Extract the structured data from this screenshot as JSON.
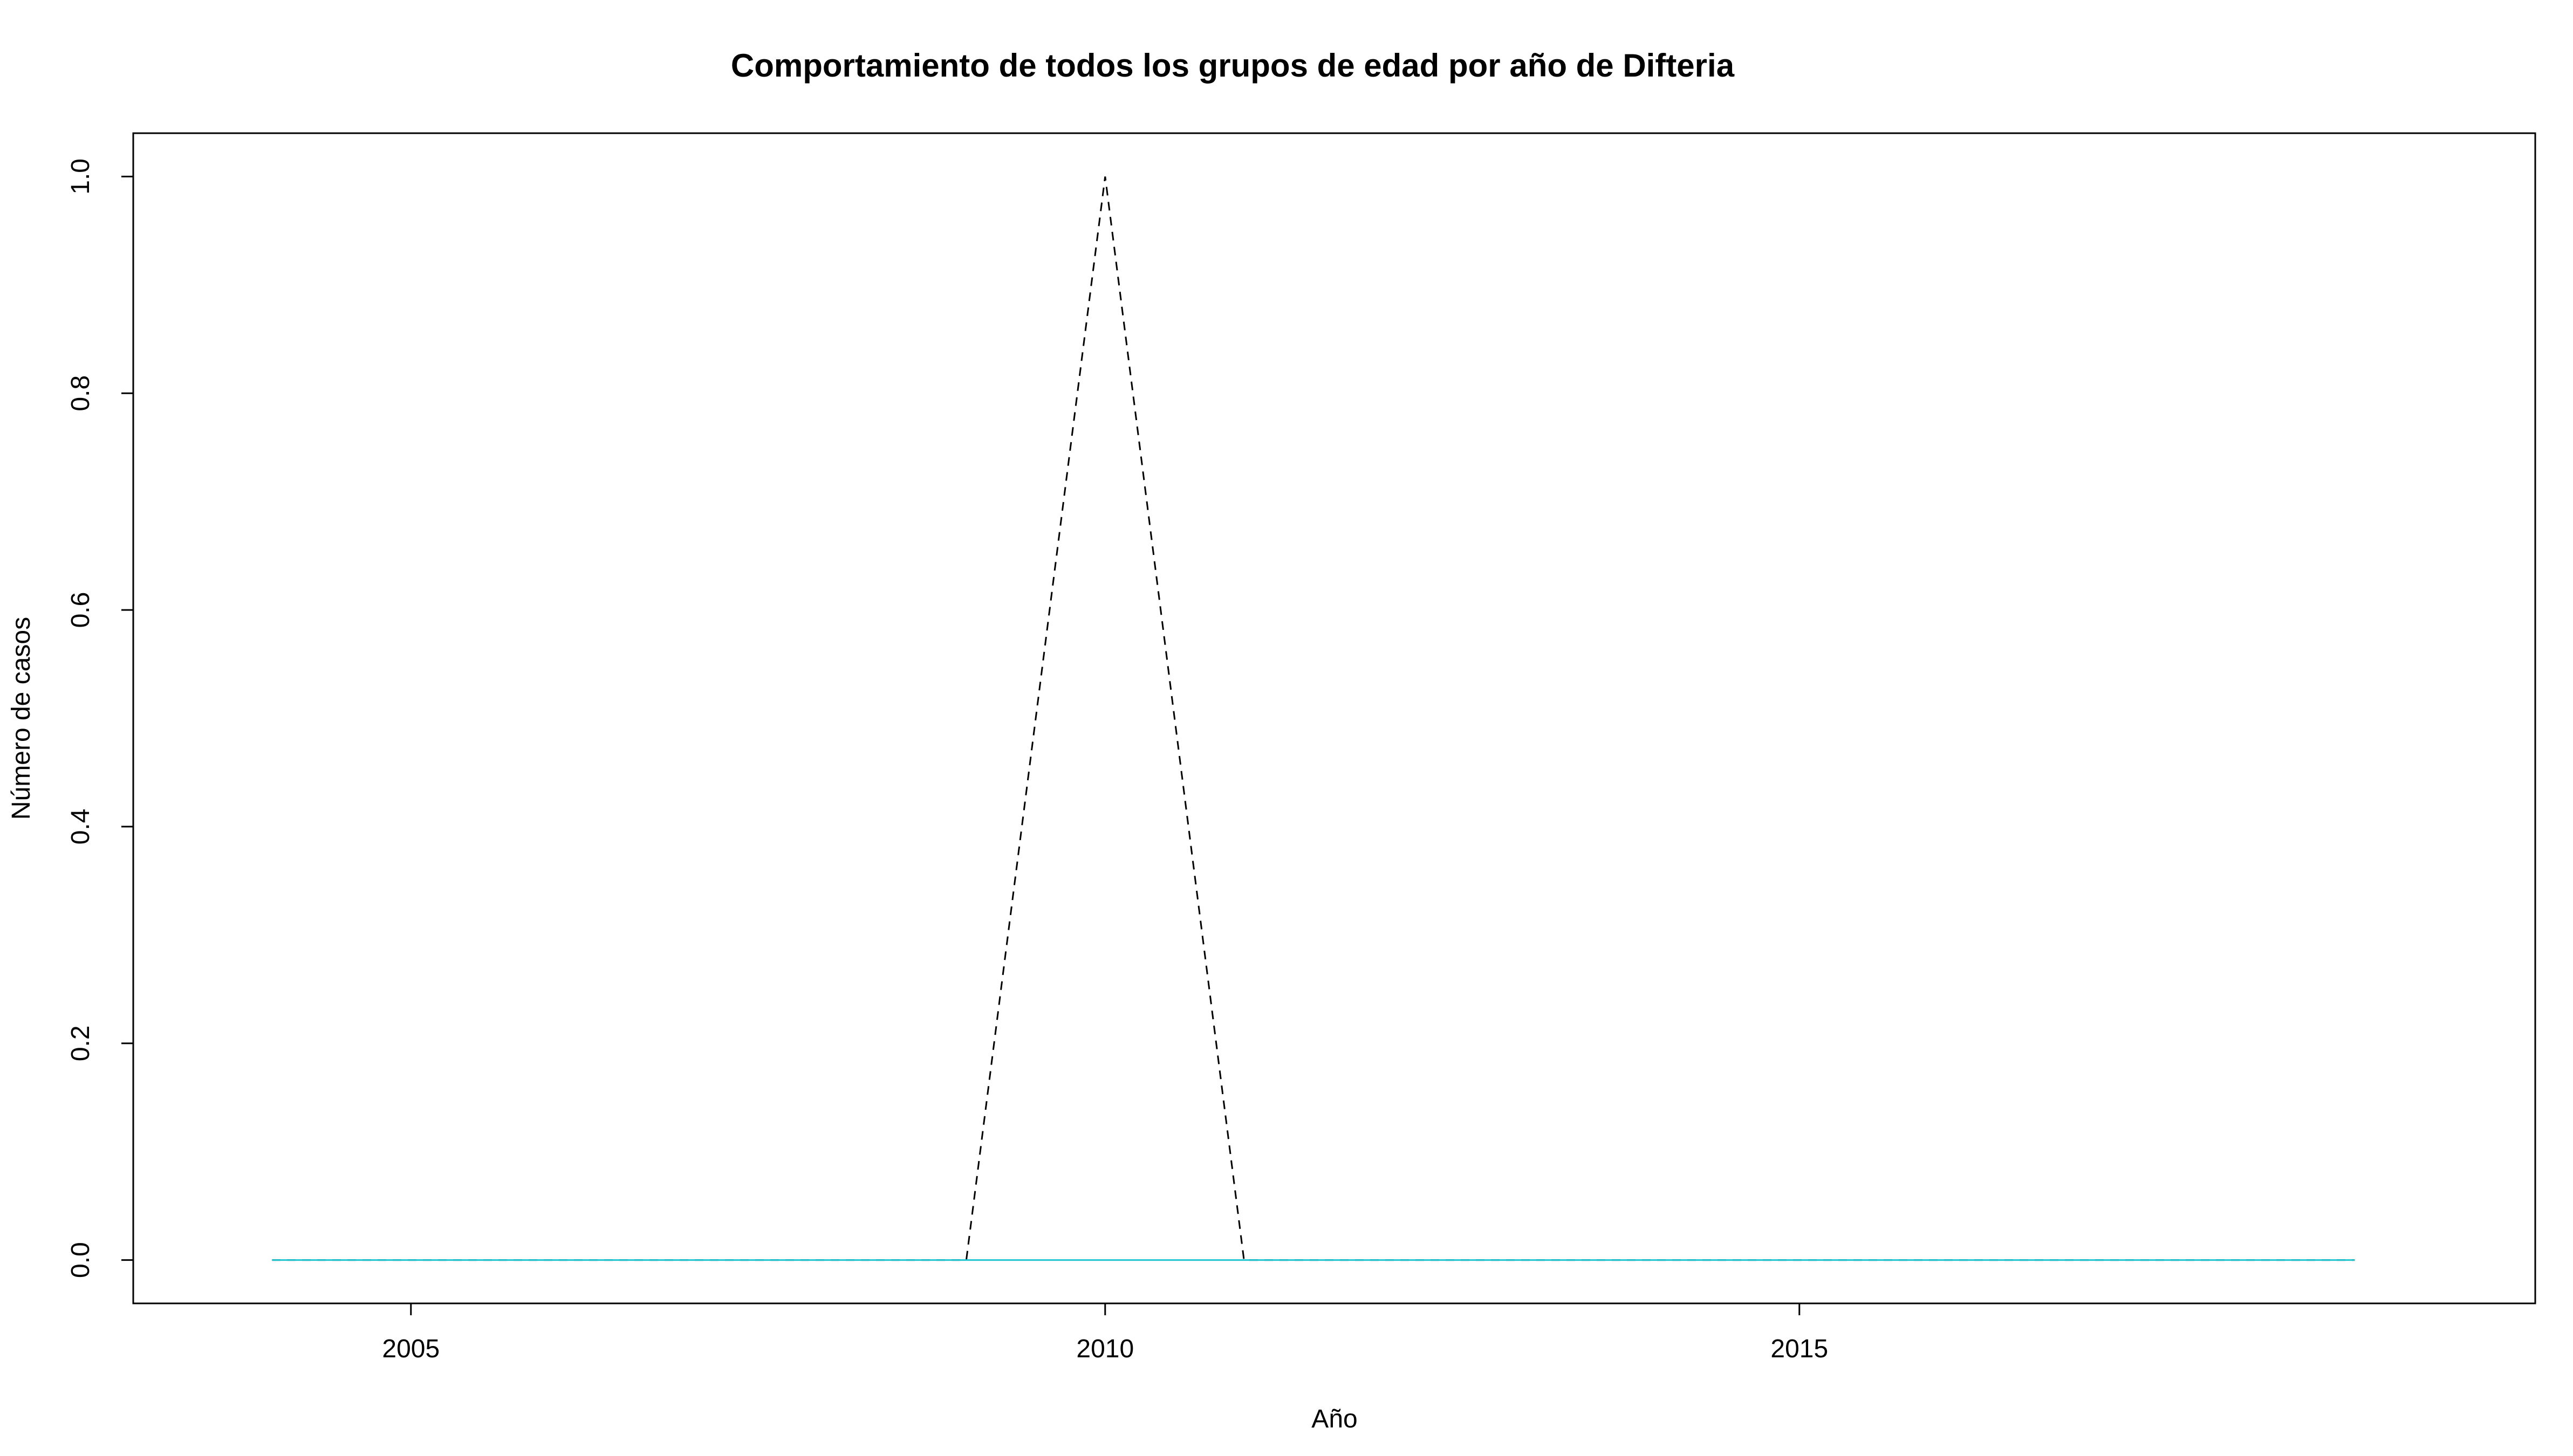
{
  "chart_data": {
    "type": "line",
    "title": "Comportamiento de todos los grupos de edad por año de Difteria",
    "xlabel": "Año",
    "ylabel": "Número de casos",
    "xlim": [
      2003.0,
      2020.3
    ],
    "ylim": [
      -0.04,
      1.04
    ],
    "x_ticks": [
      "2005",
      "2010",
      "2015"
    ],
    "y_ticks": [
      "0.0",
      "0.2",
      "0.4",
      "0.6",
      "0.8",
      "1.0"
    ],
    "grid": false,
    "legend": "none",
    "x": [
      2004,
      2005,
      2006,
      2007,
      2008,
      2009,
      2010,
      2011,
      2012,
      2013,
      2014,
      2015,
      2016,
      2017,
      2018,
      2019
    ],
    "series": [
      {
        "color": "#000000",
        "line_style": "dashed",
        "values": [
          0,
          0,
          0,
          0,
          0,
          0,
          1,
          0,
          0,
          0,
          0,
          0,
          0,
          0,
          0,
          0
        ]
      },
      {
        "color": "#20C5D0",
        "line_style": "solid",
        "values": [
          0,
          0,
          0,
          0,
          0,
          0,
          0,
          0,
          0,
          0,
          0,
          0,
          0,
          0,
          0,
          0
        ]
      }
    ]
  }
}
